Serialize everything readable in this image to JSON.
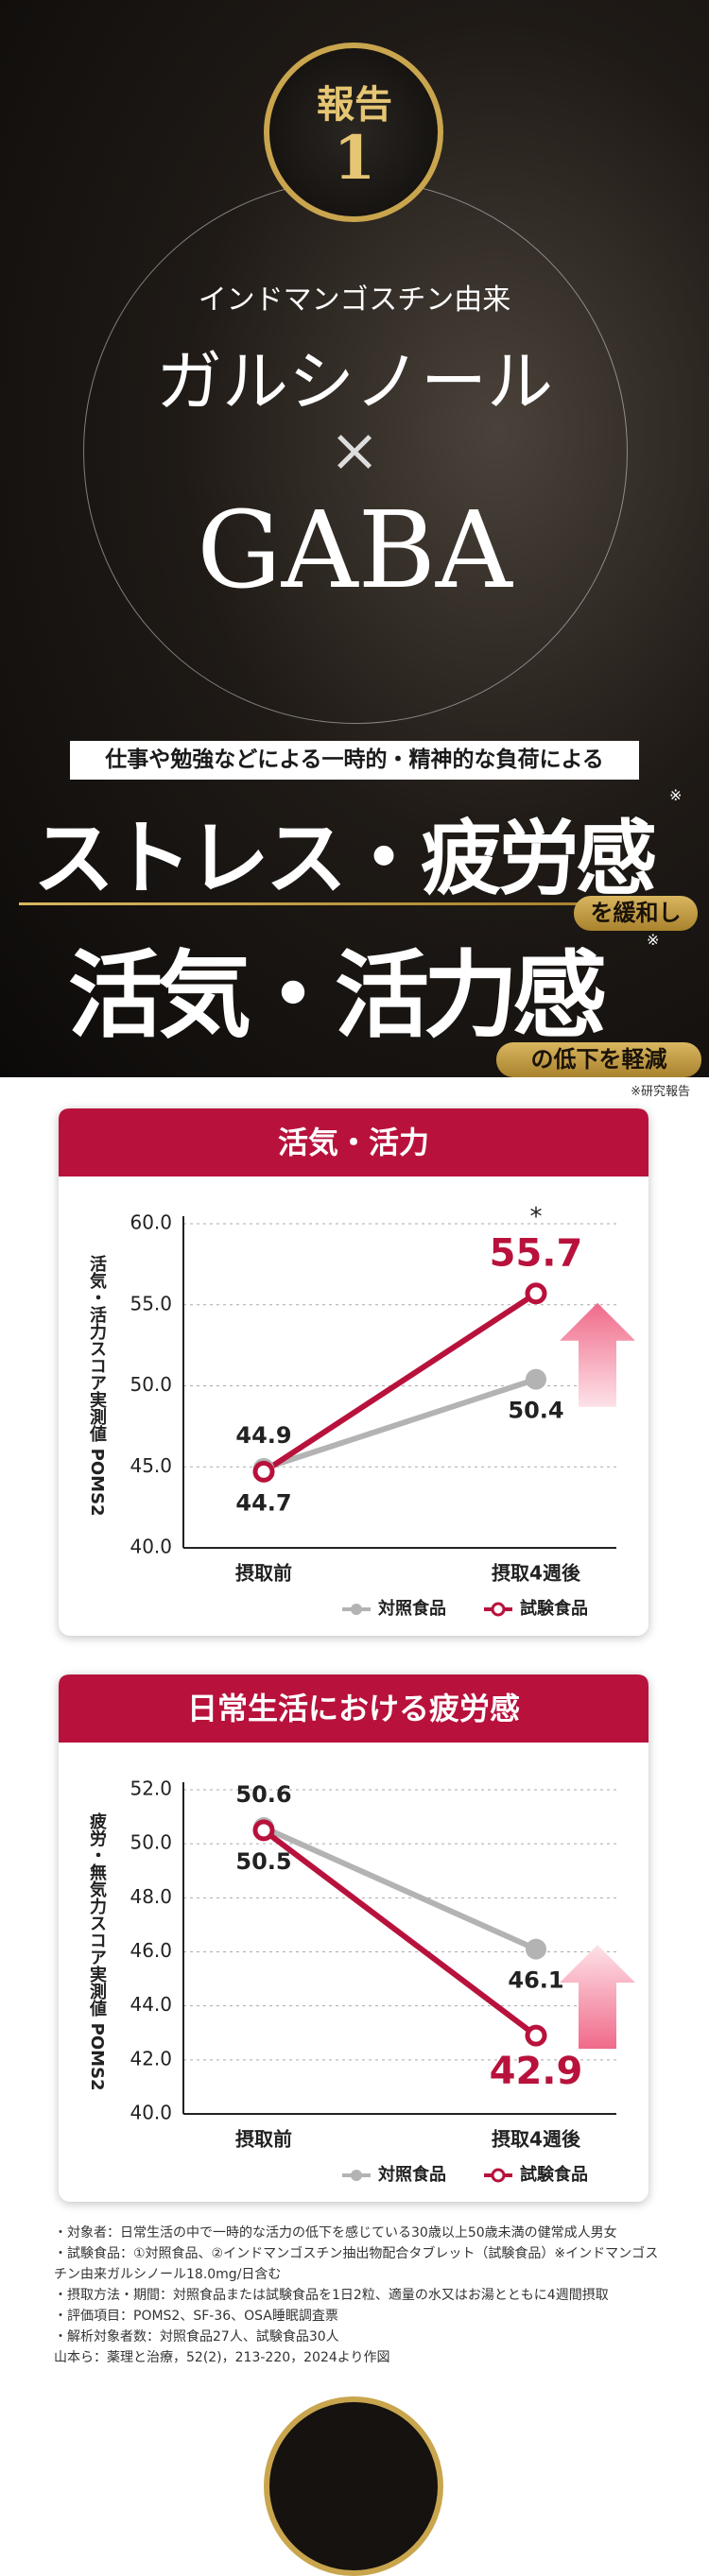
{
  "hero": {
    "badge_label": "報告",
    "badge_number": "1",
    "origin": "インドマンゴスチン由来",
    "ingredient": "ガルシノール",
    "times": "×",
    "gaba": "GABA"
  },
  "headline": {
    "lead": "仕事や勉強などによる一時的・精神的な負荷による",
    "line1": "ストレス・疲労感",
    "mark1": "※",
    "suffix1": "を緩和し",
    "line2": "活気・活力感",
    "mark2": "※",
    "suffix2": "の低下を軽減",
    "footnote": "※研究報告"
  },
  "chart_data": [
    {
      "type": "line",
      "title": "活気・活力",
      "y_label": "活気・活力スコア実測値 POMS2",
      "categories": [
        "摂取前",
        "摂取4週後"
      ],
      "series": [
        {
          "name": "対照食品",
          "color": "#b3b3b3",
          "values": [
            44.9,
            50.4
          ]
        },
        {
          "name": "試験食品",
          "color": "#b8123c",
          "values": [
            44.7,
            55.7
          ]
        }
      ],
      "ylim": [
        40,
        60
      ],
      "yticks": [
        {
          "value": 40,
          "label": "40.0"
        },
        {
          "value": 45,
          "label": "45.0"
        },
        {
          "value": 50,
          "label": "50.0"
        },
        {
          "value": 55,
          "label": "55.0"
        },
        {
          "value": 60,
          "label": "60.0"
        }
      ],
      "grid": true,
      "annotation": "*"
    },
    {
      "type": "line",
      "title": "日常生活における疲労感",
      "y_label": "疲労・無気力スコア実測値 POMS2",
      "categories": [
        "摂取前",
        "摂取4週後"
      ],
      "series": [
        {
          "name": "対照食品",
          "color": "#b3b3b3",
          "values": [
            50.6,
            46.1
          ]
        },
        {
          "name": "試験食品",
          "color": "#b8123c",
          "values": [
            50.5,
            42.9
          ]
        }
      ],
      "ylim": [
        40,
        52
      ],
      "yticks": [
        {
          "value": 40,
          "label": "40.0"
        },
        {
          "value": 42,
          "label": "42.0"
        },
        {
          "value": 44,
          "label": "44.0"
        },
        {
          "value": 46,
          "label": "46.0"
        },
        {
          "value": 48,
          "label": "48.0"
        },
        {
          "value": 50,
          "label": "50.0"
        },
        {
          "value": 52,
          "label": "52.0"
        }
      ],
      "grid": true
    }
  ],
  "notes": [
    "・対象者：日常生活の中で一時的な活力の低下を感じている30歳以上50歳未満の健常成人男女",
    "・試験食品：①対照食品、②インドマンゴスチン抽出物配合タブレット（試験食品）※インドマンゴスチン由来ガルシノール18.0mg/日含む",
    "・摂取方法・期間：対照食品または試験食品を1日2粒、適量の水又はお湯とともに4週間摂取",
    "・評価項目：POMS2、SF-36、OSA睡眠調査票",
    "・解析対象者数：対照食品27人、試験食品30人",
    "山本ら：薬理と治療，52(2)，213-220，2024より作図"
  ]
}
